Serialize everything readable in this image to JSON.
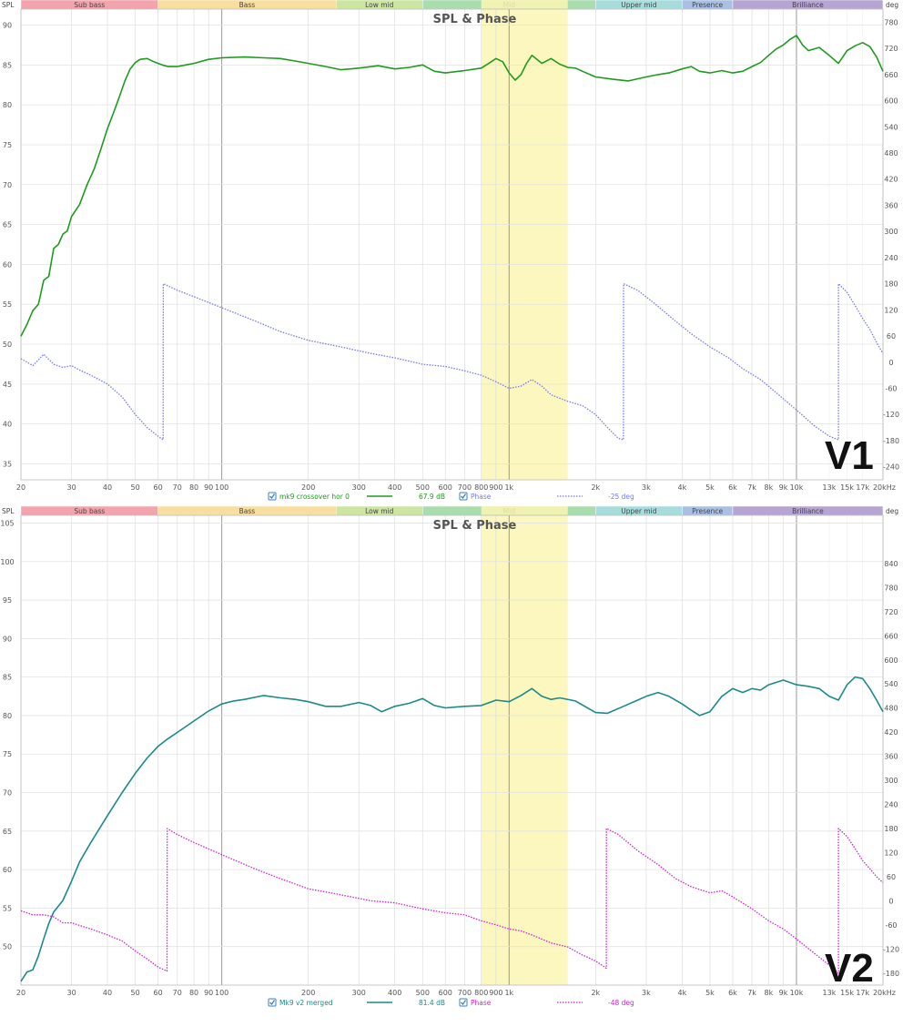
{
  "bands": [
    {
      "label": "Sub bass",
      "from": 20,
      "to": 60,
      "color": "#f3a3ab"
    },
    {
      "label": "Bass",
      "from": 60,
      "to": 250,
      "color": "#f8dfa0"
    },
    {
      "label": "Low mid",
      "from": 250,
      "to": 500,
      "color": "#cce6a2"
    },
    {
      "label": "Mid",
      "from": 500,
      "to": 2000,
      "color": "#a8deae"
    },
    {
      "label": "Upper mid",
      "from": 2000,
      "to": 4000,
      "color": "#a6dddc"
    },
    {
      "label": "Presence",
      "from": 4000,
      "to": 6000,
      "color": "#a9c0e4"
    },
    {
      "label": "Brilliance",
      "from": 6000,
      "to": 20000,
      "color": "#b6a4d2"
    }
  ],
  "x_ticks": [
    {
      "v": 20,
      "t": "20"
    },
    {
      "v": 30,
      "t": "30"
    },
    {
      "v": 40,
      "t": "40"
    },
    {
      "v": 50,
      "t": "50"
    },
    {
      "v": 60,
      "t": "60"
    },
    {
      "v": 70,
      "t": "70"
    },
    {
      "v": 80,
      "t": "80"
    },
    {
      "v": 90,
      "t": "90"
    },
    {
      "v": 100,
      "t": "100"
    },
    {
      "v": 200,
      "t": "200"
    },
    {
      "v": 300,
      "t": "300"
    },
    {
      "v": 400,
      "t": "400"
    },
    {
      "v": 500,
      "t": "500"
    },
    {
      "v": 600,
      "t": "600"
    },
    {
      "v": 700,
      "t": "700"
    },
    {
      "v": 800,
      "t": "800"
    },
    {
      "v": 900,
      "t": "900"
    },
    {
      "v": 1000,
      "t": "1k"
    },
    {
      "v": 2000,
      "t": "2k"
    },
    {
      "v": 3000,
      "t": "3k"
    },
    {
      "v": 4000,
      "t": "4k"
    },
    {
      "v": 5000,
      "t": "5k"
    },
    {
      "v": 6000,
      "t": "6k"
    },
    {
      "v": 7000,
      "t": "7k"
    },
    {
      "v": 8000,
      "t": "8k"
    },
    {
      "v": 9000,
      "t": "9k"
    },
    {
      "v": 10000,
      "t": "10k"
    },
    {
      "v": 13000,
      "t": "13k"
    },
    {
      "v": 15000,
      "t": "15k"
    },
    {
      "v": 17000,
      "t": "17k"
    },
    {
      "v": 20000,
      "t": "20kHz"
    }
  ],
  "chart_data": [
    {
      "type": "line",
      "title": "SPL & Phase",
      "ylabel": "SPL",
      "y2label": "deg",
      "xscale": "log",
      "xlim": [
        20,
        20000
      ],
      "ylim": [
        33,
        92
      ],
      "y2lim": [
        -270,
        810
      ],
      "y_ticks": [
        35,
        40,
        45,
        50,
        55,
        60,
        65,
        70,
        75,
        80,
        85,
        90
      ],
      "y2_ticks": [
        -240,
        -180,
        -120,
        -60,
        0,
        60,
        120,
        180,
        240,
        300,
        360,
        420,
        480,
        540,
        600,
        660,
        720,
        780
      ],
      "highlight_range": [
        800,
        1600
      ],
      "label": "V1",
      "legend": [
        {
          "checked": true,
          "name": "mk9 crossover hor 0",
          "value": "67.9 dB",
          "color": "#1e9b1e",
          "style": "solid"
        },
        {
          "checked": true,
          "name": "Phase",
          "value": "-25 deg",
          "color": "#7777ee",
          "style": "dotted"
        }
      ],
      "series": [
        {
          "name": "mk9 crossover hor 0",
          "axis": "left",
          "color": "#1e9b1e",
          "style": "solid",
          "x": [
            20,
            21,
            22,
            23,
            24,
            25,
            26,
            27,
            28,
            29,
            30,
            32,
            34,
            36,
            38,
            40,
            42,
            44,
            46,
            48,
            50,
            52,
            55,
            58,
            60,
            62,
            65,
            70,
            75,
            80,
            90,
            100,
            120,
            140,
            160,
            180,
            200,
            230,
            260,
            300,
            350,
            400,
            450,
            500,
            550,
            600,
            700,
            800,
            850,
            900,
            950,
            1000,
            1050,
            1100,
            1150,
            1200,
            1300,
            1400,
            1500,
            1600,
            1700,
            1800,
            2000,
            2300,
            2600,
            3000,
            3300,
            3600,
            4000,
            4300,
            4600,
            5000,
            5500,
            6000,
            6500,
            7000,
            7500,
            8000,
            8500,
            9000,
            9500,
            10000,
            10500,
            11000,
            12000,
            13000,
            14000,
            15000,
            16000,
            17000,
            18000,
            19000,
            20000
          ],
          "y": [
            51,
            52.5,
            54.2,
            55,
            58,
            58.5,
            62,
            62.5,
            63.8,
            64.2,
            66,
            67.5,
            70,
            72,
            74.5,
            77,
            79,
            81,
            83,
            84.5,
            85.3,
            85.7,
            85.8,
            85.4,
            85.2,
            85,
            84.8,
            84.8,
            85,
            85.2,
            85.7,
            85.9,
            86,
            85.9,
            85.8,
            85.5,
            85.2,
            84.8,
            84.4,
            84.6,
            84.9,
            84.5,
            84.7,
            85,
            84.2,
            84,
            84.3,
            84.6,
            85.2,
            85.8,
            85.4,
            84,
            83.1,
            83.8,
            85.2,
            86.2,
            85.2,
            85.8,
            85.1,
            84.7,
            84.6,
            84.2,
            83.5,
            83.2,
            83,
            83.5,
            83.8,
            84,
            84.5,
            84.8,
            84.2,
            84,
            84.3,
            84,
            84.2,
            84.8,
            85.3,
            86.2,
            87,
            87.5,
            88.2,
            88.7,
            87.5,
            86.8,
            87.2,
            86.2,
            85.2,
            86.8,
            87.4,
            87.8,
            87.3,
            86,
            84.2
          ]
        },
        {
          "name": "Phase",
          "axis": "right",
          "color": "#7777ee",
          "style": "dotted",
          "x": [
            20,
            22,
            24,
            26,
            28,
            30,
            32,
            35,
            40,
            45,
            50,
            55,
            60,
            62.5,
            62.6,
            70,
            80,
            100,
            130,
            160,
            200,
            260,
            330,
            400,
            500,
            600,
            700,
            800,
            900,
            1000,
            1100,
            1200,
            1300,
            1400,
            1600,
            1800,
            2000,
            2200,
            2400,
            2500,
            2501,
            2800,
            3200,
            3700,
            4300,
            5000,
            5800,
            6500,
            7500,
            8500,
            10000,
            11500,
            13000,
            14000,
            14001,
            15000,
            16000,
            17000,
            18000,
            19000,
            20000
          ],
          "y": [
            8,
            -8,
            18,
            -5,
            -12,
            -8,
            -18,
            -30,
            -50,
            -80,
            -120,
            -150,
            -170,
            -178,
            180,
            165,
            150,
            125,
            95,
            70,
            50,
            35,
            20,
            10,
            -5,
            -10,
            -20,
            -30,
            -45,
            -60,
            -55,
            -40,
            -55,
            -75,
            -90,
            -100,
            -120,
            -150,
            -175,
            -178,
            180,
            165,
            135,
            100,
            65,
            35,
            10,
            -15,
            -40,
            -70,
            -110,
            -145,
            -170,
            -178,
            180,
            160,
            130,
            100,
            75,
            45,
            20
          ]
        }
      ]
    },
    {
      "type": "line",
      "title": "SPL & Phase",
      "ylabel": "SPL",
      "y2label": "deg",
      "xscale": "log",
      "xlim": [
        20,
        20000
      ],
      "ylim": [
        45,
        106
      ],
      "y2lim": [
        -210,
        960
      ],
      "y_ticks": [
        50,
        55,
        60,
        65,
        70,
        75,
        80,
        85,
        90,
        95,
        100,
        105
      ],
      "y2_ticks": [
        -180,
        -120,
        -60,
        0,
        60,
        120,
        180,
        240,
        300,
        360,
        420,
        480,
        540,
        600,
        660,
        720,
        780,
        840
      ],
      "highlight_range": [
        800,
        1600
      ],
      "label": "V2",
      "legend": [
        {
          "checked": true,
          "name": "Mk9 v2 merged",
          "value": "81.4 dB",
          "color": "#1a8a8a",
          "style": "solid"
        },
        {
          "checked": true,
          "name": "Phase",
          "value": "-48 deg",
          "color": "#d11fd1",
          "style": "dotted"
        }
      ],
      "series": [
        {
          "name": "Mk9 v2 merged",
          "axis": "left",
          "color": "#1a8a8a",
          "style": "solid",
          "x": [
            20,
            21,
            22,
            23,
            24,
            25,
            26,
            28,
            30,
            32,
            35,
            40,
            45,
            50,
            55,
            60,
            65,
            70,
            80,
            90,
            100,
            110,
            120,
            140,
            160,
            180,
            200,
            230,
            260,
            300,
            330,
            360,
            400,
            450,
            500,
            550,
            600,
            700,
            800,
            900,
            1000,
            1100,
            1200,
            1300,
            1400,
            1500,
            1700,
            2000,
            2200,
            2500,
            2800,
            3000,
            3300,
            3600,
            4000,
            4300,
            4600,
            5000,
            5500,
            6000,
            6500,
            7000,
            7500,
            8000,
            9000,
            10000,
            11000,
            12000,
            13000,
            14000,
            15000,
            16000,
            17000,
            18000,
            19000,
            20000
          ],
          "y": [
            45.5,
            46.7,
            47,
            48.8,
            51,
            53,
            54.5,
            56,
            58.5,
            61,
            63.5,
            67,
            70,
            72.5,
            74.5,
            76,
            77,
            77.8,
            79.3,
            80.6,
            81.5,
            81.9,
            82.1,
            82.6,
            82.3,
            82.1,
            81.8,
            81.2,
            81.2,
            81.7,
            81.3,
            80.5,
            81.2,
            81.6,
            82.2,
            81.3,
            81,
            81.2,
            81.3,
            82,
            81.8,
            82.6,
            83.5,
            82.5,
            82.1,
            82.3,
            81.9,
            80.4,
            80.3,
            81.2,
            82,
            82.5,
            83,
            82.5,
            81.5,
            80.7,
            80,
            80.5,
            82.5,
            83.5,
            83,
            83.5,
            83.3,
            84,
            84.6,
            84,
            83.8,
            83.5,
            82.5,
            82,
            84,
            85,
            84.8,
            83.5,
            82,
            80.5
          ]
        },
        {
          "name": "Phase",
          "axis": "right",
          "color": "#d11fd1",
          "style": "dotted",
          "x": [
            20,
            22,
            24,
            26,
            28,
            30,
            35,
            40,
            45,
            50,
            55,
            60,
            64.5,
            64.6,
            70,
            80,
            100,
            130,
            160,
            200,
            260,
            330,
            400,
            500,
            600,
            700,
            800,
            900,
            1000,
            1100,
            1200,
            1400,
            1600,
            1800,
            2000,
            2100,
            2180,
            2181,
            2400,
            2800,
            3300,
            3800,
            4300,
            5000,
            5500,
            6000,
            7000,
            8000,
            9000,
            10000,
            11500,
            13000,
            14000,
            14001,
            15000,
            16000,
            17000,
            18000,
            19000,
            20000
          ],
          "y": [
            -25,
            -35,
            -35,
            -40,
            -55,
            -55,
            -70,
            -85,
            -100,
            -125,
            -145,
            -165,
            -175,
            180,
            165,
            145,
            115,
            80,
            55,
            30,
            15,
            0,
            -5,
            -20,
            -30,
            -35,
            -50,
            -60,
            -70,
            -75,
            -85,
            -105,
            -115,
            -135,
            -150,
            -160,
            -168,
            180,
            165,
            125,
            90,
            55,
            35,
            20,
            25,
            10,
            -20,
            -50,
            -70,
            -95,
            -130,
            -160,
            -180,
            180,
            160,
            130,
            100,
            80,
            60,
            45
          ]
        }
      ]
    }
  ]
}
